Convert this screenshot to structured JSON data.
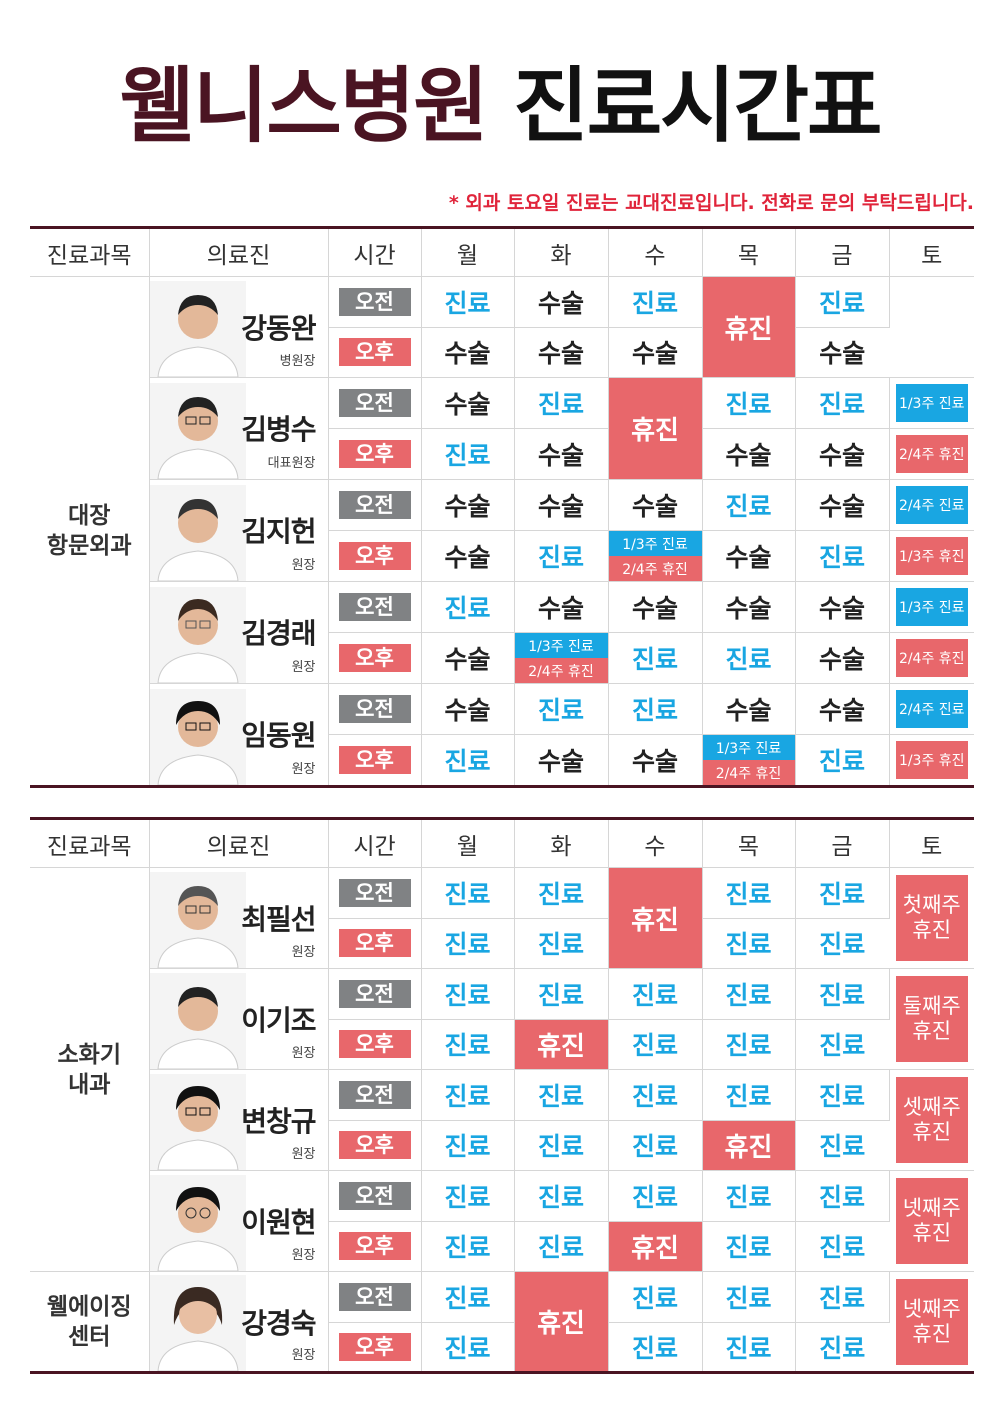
{
  "title": {
    "brand": "웰니스병원",
    "rest": "진료시간표"
  },
  "notice": "* 외과 토요일 진료는 교대진료입니다. 전화로 문의 부탁드립니다.",
  "headers": [
    "진료과목",
    "의료진",
    "시간",
    "월",
    "화",
    "수",
    "목",
    "금",
    "토"
  ],
  "am_label": "오전",
  "pm_label": "오후",
  "labels": {
    "jin": "진료",
    "sul": "수술",
    "rest": "휴진"
  },
  "departments": {
    "surgery": "대장\n항문외과",
    "gastro": "소화기\n내과",
    "wellaging": "웰에이징\n센터"
  },
  "doctors": [
    {
      "name": "강동완",
      "role": "병원장"
    },
    {
      "name": "김병수",
      "role": "대표원장"
    },
    {
      "name": "김지헌",
      "role": "원장"
    },
    {
      "name": "김경래",
      "role": "원장"
    },
    {
      "name": "임동원",
      "role": "원장"
    },
    {
      "name": "최필선",
      "role": "원장"
    },
    {
      "name": "이기조",
      "role": "원장"
    },
    {
      "name": "변창규",
      "role": "원장"
    },
    {
      "name": "이원현",
      "role": "원장"
    },
    {
      "name": "강경숙",
      "role": "원장"
    }
  ],
  "alt": {
    "w13jin": "1/3주 진료",
    "w24rest": "2/4주 휴진",
    "w24jin": "2/4주 진료",
    "w13rest": "1/3주 휴진"
  },
  "sat_rest": {
    "first": [
      "첫째주",
      "휴진"
    ],
    "second": [
      "둘째주",
      "휴진"
    ],
    "third": [
      "셋째주",
      "휴진"
    ],
    "fourth": [
      "넷째주",
      "휴진"
    ]
  },
  "colors": {
    "brand": "#4a1422",
    "blue": "#19a6e2",
    "red": "#e8676b",
    "grey": "#808284",
    "notice": "#e0243a"
  }
}
